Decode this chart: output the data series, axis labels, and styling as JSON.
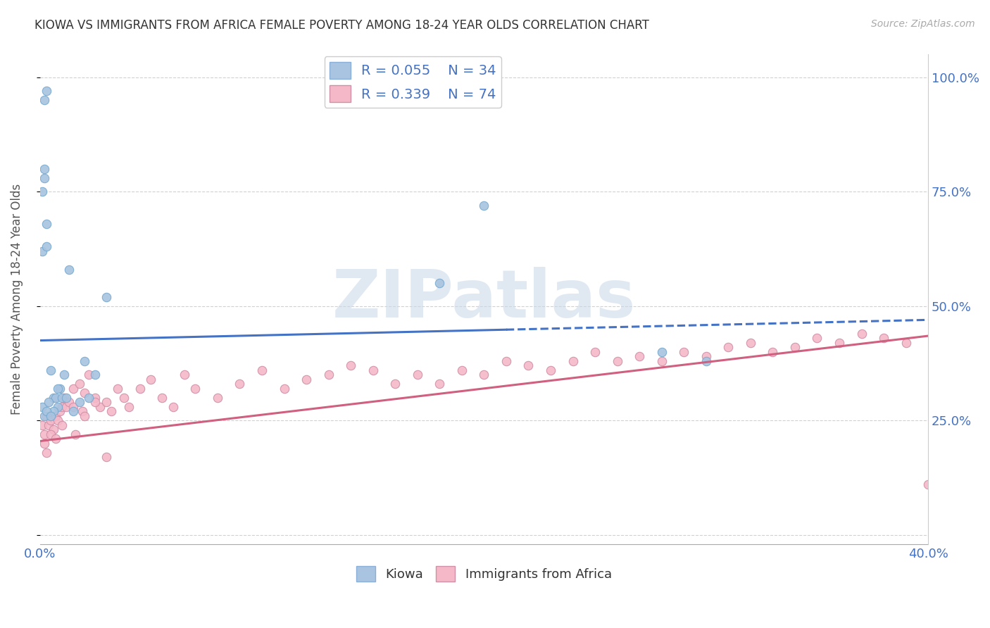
{
  "title": "KIOWA VS IMMIGRANTS FROM AFRICA FEMALE POVERTY AMONG 18-24 YEAR OLDS CORRELATION CHART",
  "source": "Source: ZipAtlas.com",
  "ylabel": "Female Poverty Among 18-24 Year Olds",
  "xlim": [
    0.0,
    0.4
  ],
  "ylim": [
    -0.02,
    1.05
  ],
  "legend_R1": "0.055",
  "legend_N1": "34",
  "legend_R2": "0.339",
  "legend_N2": "74",
  "kiowa_color": "#a8c4e0",
  "africa_color": "#f4b8c8",
  "trend_kiowa_color": "#4472c4",
  "trend_africa_color": "#d06080",
  "background_color": "#ffffff",
  "grid_color": "#cccccc",
  "kiowa_x": [
    0.002,
    0.003,
    0.001,
    0.002,
    0.003,
    0.005,
    0.006,
    0.007,
    0.008,
    0.009,
    0.01,
    0.011,
    0.013,
    0.015,
    0.018,
    0.02,
    0.022,
    0.025,
    0.03,
    0.001,
    0.004,
    0.006,
    0.008,
    0.012,
    0.001,
    0.002,
    0.003,
    0.28,
    0.3,
    0.2,
    0.18,
    0.002,
    0.003,
    0.005
  ],
  "kiowa_y": [
    0.95,
    0.97,
    0.62,
    0.78,
    0.63,
    0.36,
    0.3,
    0.3,
    0.28,
    0.32,
    0.3,
    0.35,
    0.58,
    0.27,
    0.29,
    0.38,
    0.3,
    0.35,
    0.52,
    0.28,
    0.29,
    0.27,
    0.32,
    0.3,
    0.75,
    0.8,
    0.68,
    0.4,
    0.38,
    0.72,
    0.55,
    0.26,
    0.27,
    0.26
  ],
  "africa_x": [
    0.001,
    0.002,
    0.003,
    0.004,
    0.005,
    0.006,
    0.007,
    0.008,
    0.009,
    0.01,
    0.011,
    0.012,
    0.013,
    0.015,
    0.016,
    0.018,
    0.019,
    0.02,
    0.022,
    0.025,
    0.027,
    0.03,
    0.032,
    0.035,
    0.038,
    0.04,
    0.045,
    0.05,
    0.055,
    0.06,
    0.065,
    0.07,
    0.08,
    0.09,
    0.1,
    0.11,
    0.12,
    0.13,
    0.14,
    0.15,
    0.16,
    0.17,
    0.18,
    0.19,
    0.2,
    0.21,
    0.22,
    0.23,
    0.24,
    0.25,
    0.26,
    0.27,
    0.28,
    0.29,
    0.3,
    0.31,
    0.32,
    0.33,
    0.34,
    0.35,
    0.36,
    0.37,
    0.38,
    0.39,
    0.002,
    0.003,
    0.005,
    0.007,
    0.01,
    0.015,
    0.02,
    0.025,
    0.03,
    0.4
  ],
  "africa_y": [
    0.24,
    0.22,
    0.26,
    0.24,
    0.25,
    0.23,
    0.26,
    0.25,
    0.27,
    0.28,
    0.3,
    0.28,
    0.29,
    0.32,
    0.22,
    0.33,
    0.27,
    0.31,
    0.35,
    0.3,
    0.28,
    0.29,
    0.27,
    0.32,
    0.3,
    0.28,
    0.32,
    0.34,
    0.3,
    0.28,
    0.35,
    0.32,
    0.3,
    0.33,
    0.36,
    0.32,
    0.34,
    0.35,
    0.37,
    0.36,
    0.33,
    0.35,
    0.33,
    0.36,
    0.35,
    0.38,
    0.37,
    0.36,
    0.38,
    0.4,
    0.38,
    0.39,
    0.38,
    0.4,
    0.39,
    0.41,
    0.42,
    0.4,
    0.41,
    0.43,
    0.42,
    0.44,
    0.43,
    0.42,
    0.2,
    0.18,
    0.22,
    0.21,
    0.24,
    0.28,
    0.26,
    0.29,
    0.17,
    0.11
  ],
  "kiowa_trend_x0": 0.0,
  "kiowa_trend_y0": 0.425,
  "kiowa_trend_x1": 0.4,
  "kiowa_trend_y1": 0.47,
  "africa_trend_x0": 0.0,
  "africa_trend_y0": 0.205,
  "africa_trend_x1": 0.4,
  "africa_trend_y1": 0.435
}
